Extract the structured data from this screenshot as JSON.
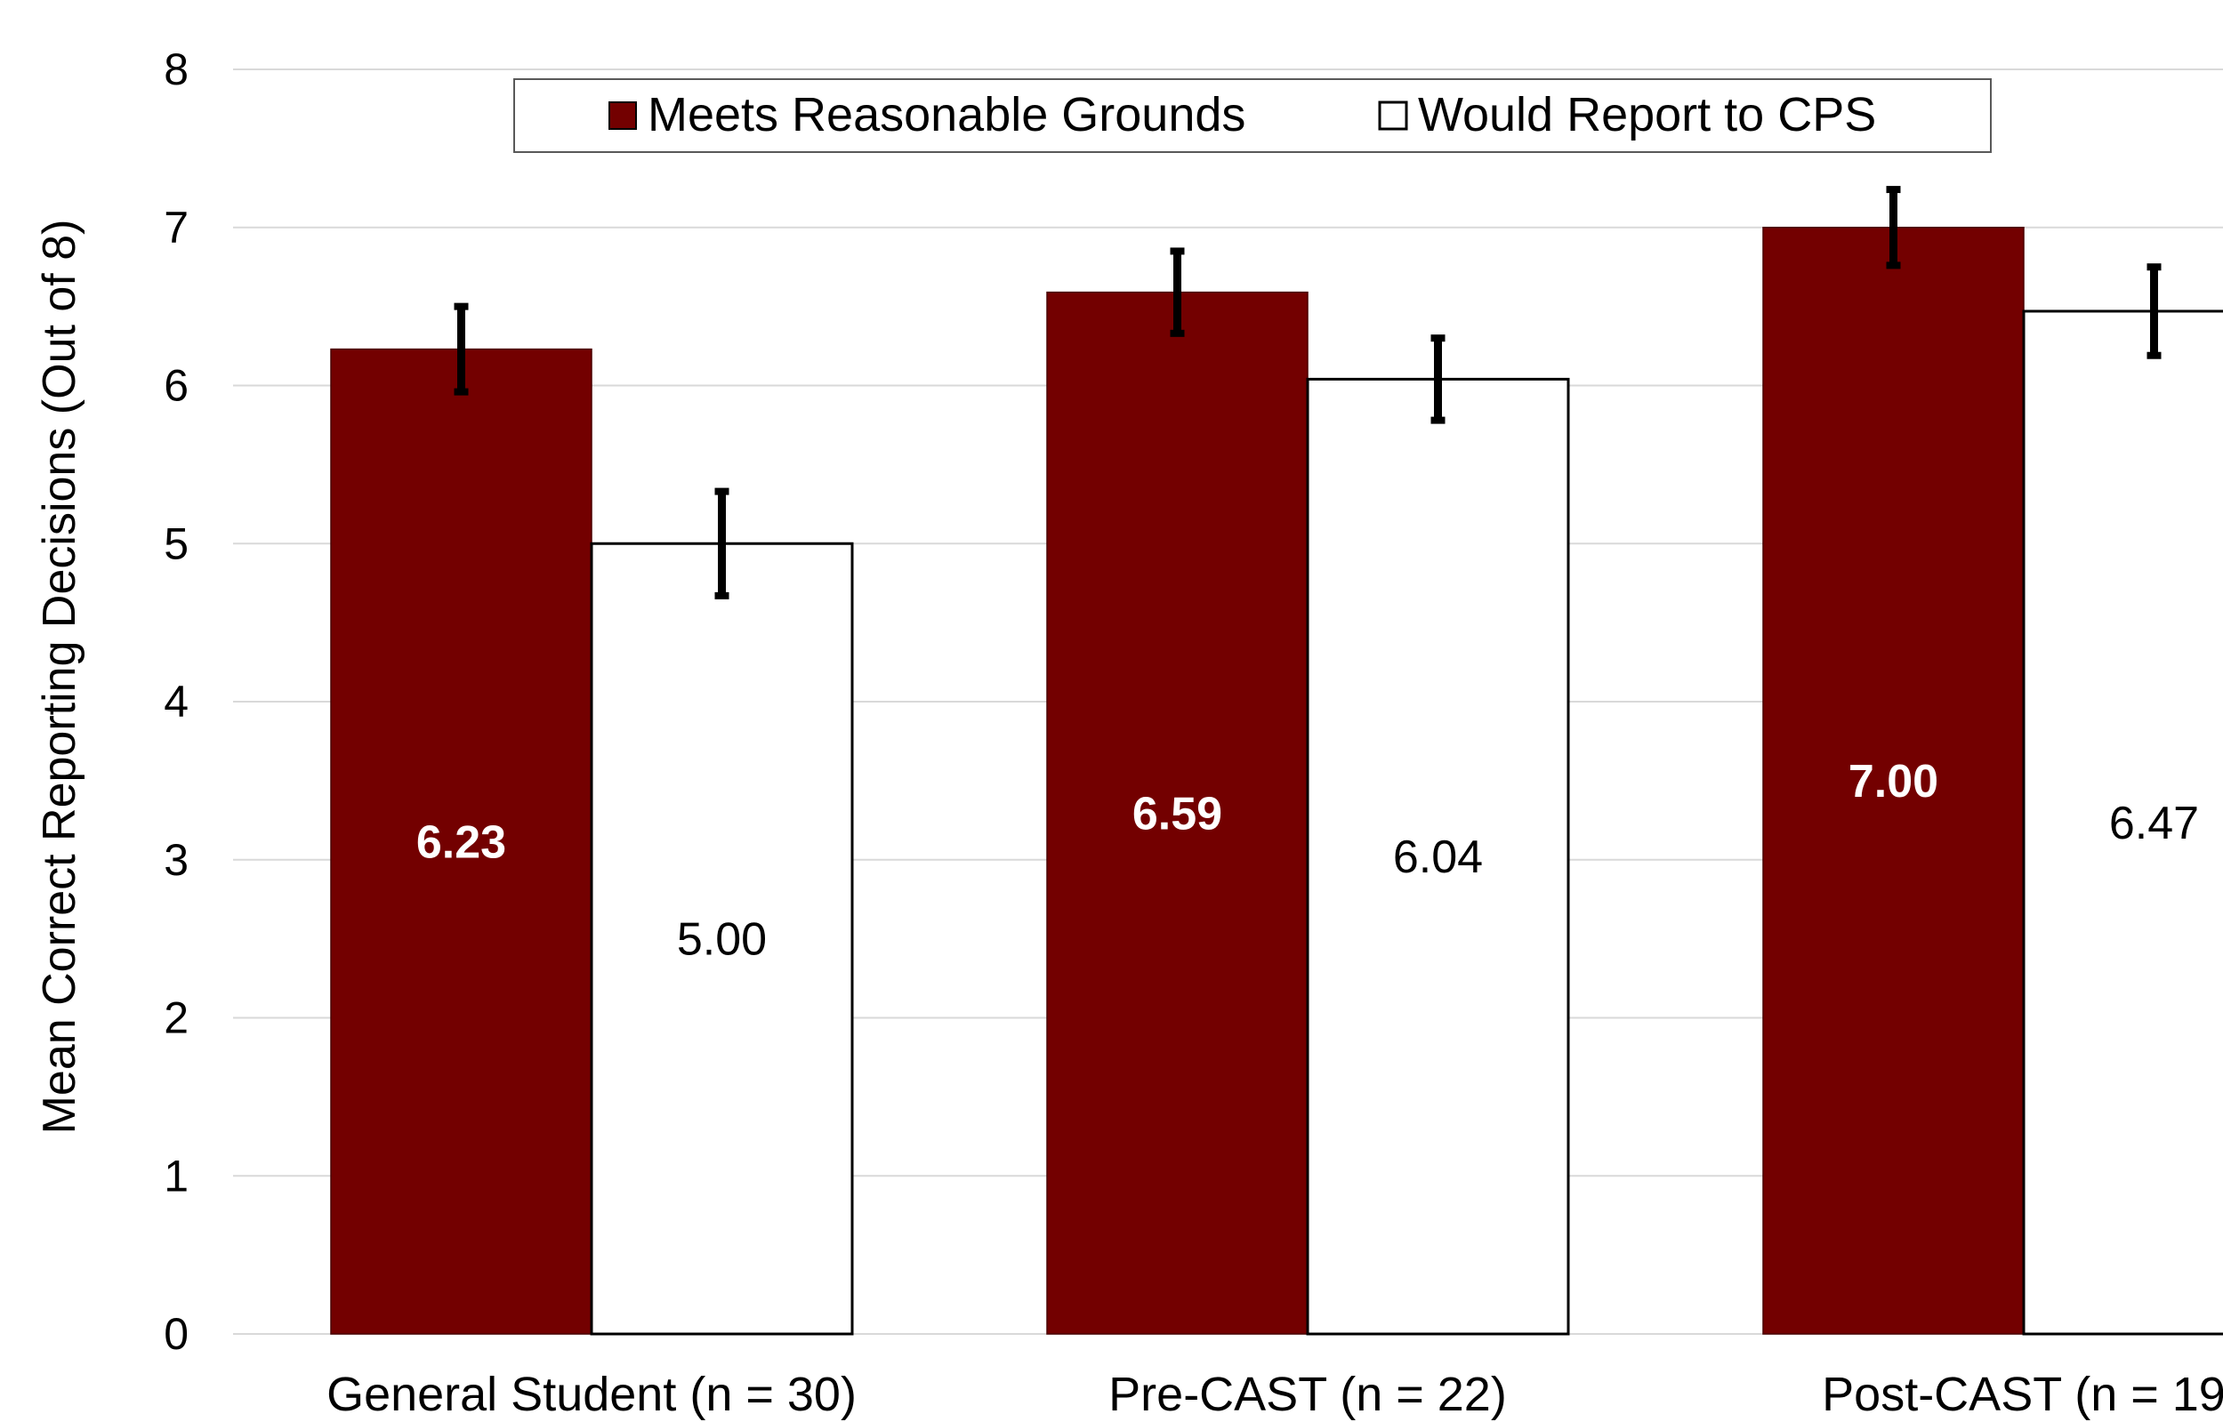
{
  "chart_data": {
    "type": "bar",
    "title": "",
    "xlabel": "",
    "ylabel": "Mean Correct Reporting Decisions (Out of 8)",
    "ylim": [
      0,
      8
    ],
    "yticks": [
      "0",
      "1",
      "2",
      "3",
      "4",
      "5",
      "6",
      "7",
      "8"
    ],
    "categories": [
      "General Student (n = 30)",
      "Pre-CAST (n = 22)",
      "Post-CAST (n = 19"
    ],
    "grid": true,
    "legend_position": "top-center",
    "series": [
      {
        "name": "Meets Reasonable Grounds",
        "color": "#730000",
        "label_color": "#ffffff",
        "values": [
          6.23,
          6.59,
          7.0
        ],
        "labels": [
          "6.23",
          "6.59",
          "7.00"
        ],
        "error": [
          0.27,
          0.26,
          0.24
        ]
      },
      {
        "name": "Would Report to CPS",
        "color": "#ffffff",
        "label_color": "#000000",
        "values": [
          5.0,
          6.04,
          6.47
        ],
        "labels": [
          "5.00",
          "6.04",
          "6.47"
        ],
        "error": [
          0.33,
          0.26,
          0.28
        ]
      }
    ]
  }
}
